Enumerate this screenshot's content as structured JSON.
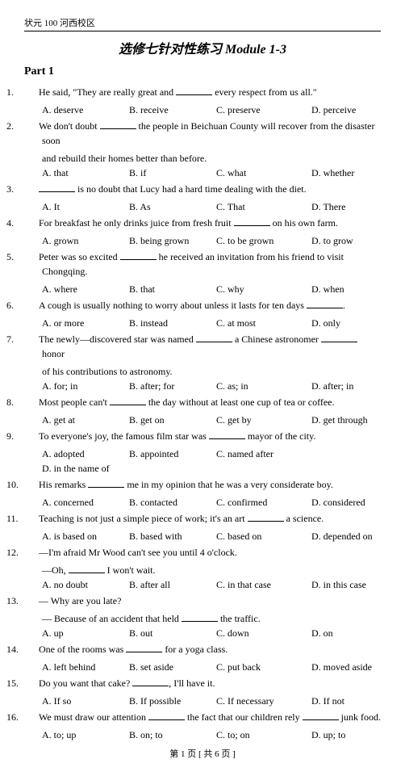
{
  "header": "状元 100 河西校区",
  "title": "选修七针对性练习 Module 1-3",
  "part_label": "Part 1",
  "footer": "第 1 页 [ 共 6 页 ]",
  "q": {
    "1": {
      "t": "He said, \"They are really great and ",
      "t2": " every respect from us all.\"",
      "a": "A. deserve",
      "b": "B. receive",
      "c": "C. preserve",
      "d": "D. perceive"
    },
    "2": {
      "t": "We don't doubt ",
      "t2": " the people in Beichuan County will recover from the disaster soon",
      "t3": "and rebuild their homes better than before.",
      "a": "A. that",
      "b": "B. if",
      "c": "C. what",
      "d": "D. whether"
    },
    "3": {
      "t": "",
      "t2": " is no doubt that Lucy had a hard time dealing with the diet.",
      "a": "A. It",
      "b": "B. As",
      "c": "C. That",
      "d": "D. There"
    },
    "4": {
      "t": "For breakfast he only drinks juice from fresh fruit ",
      "t2": " on his own farm.",
      "a": "A. grown",
      "b": "B. being grown",
      "c": "C. to be grown",
      "d": "D. to grow"
    },
    "5": {
      "t": "Peter was so excited ",
      "t2": " he received an invitation from his friend to visit Chongqing.",
      "a": "A. where",
      "b": "B. that",
      "c": "C. why",
      "d": "D. when"
    },
    "6": {
      "t": "A cough is usually nothing to worry about unless it lasts for ten days ",
      "t2": ".",
      "a": "A. or more",
      "b": "B. instead",
      "c": "C. at most",
      "d": "D. only"
    },
    "7": {
      "t": "The newly—discovered star was named ",
      "t2": " a Chinese astronomer ",
      "t3": " honor",
      "t4": "of his contributions to astronomy.",
      "a": "A. for; in",
      "b": "B. after; for",
      "c": "C. as; in",
      "d": "D. after; in"
    },
    "8": {
      "t": "Most people can't ",
      "t2": " the day without at least one cup of tea or coffee.",
      "a": "A. get at",
      "b": "B. get on",
      "c": "C. get by",
      "d": "D. get through"
    },
    "9": {
      "t": "To everyone's joy, the famous film star was ",
      "t2": " mayor of the city.",
      "a": "A. adopted",
      "b": "B. appointed",
      "c": "C. named after",
      "d": "D. in the name of"
    },
    "10": {
      "t": "His remarks ",
      "t2": " me in my opinion that he was a very considerate boy.",
      "a": "A. concerned",
      "b": "B. contacted",
      "c": "C. confirmed",
      "d": "D. considered"
    },
    "11": {
      "t": "Teaching is not just a simple piece of work; it's an art ",
      "t2": " a science.",
      "a": "A. is based on",
      "b": "B. based with",
      "c": "C. based on",
      "d": "D. depended on"
    },
    "12": {
      "t": "—I'm afraid Mr Wood can't see you until 4 o'clock.",
      "s1a": "—Oh, ",
      "s1b": " I won't wait.",
      "a": "A. no doubt",
      "b": "B. after all",
      "c": "C. in that case",
      "d": "D. in this case"
    },
    "13": {
      "t": "— Why are you late?",
      "s1a": "— Because of an accident that held ",
      "s1b": " the traffic.",
      "a": "A. up",
      "b": "B. out",
      "c": "C. down",
      "d": "D. on"
    },
    "14": {
      "t": "One of the rooms was ",
      "t2": " for a yoga class.",
      "a": "A. left behind",
      "b": "B. set aside",
      "c": "C. put back",
      "d": "D. moved aside"
    },
    "15": {
      "t": "Do you want that cake? ",
      "t2": ", I'll have it.",
      "a": "A. If so",
      "b": "B. If possible",
      "c": "C. If necessary",
      "d": "D. If not"
    },
    "16": {
      "t": "We must draw our attention ",
      "t2": " the fact that our children rely ",
      "t3": " junk food.",
      "a": "A. to; up",
      "b": "B. on; to",
      "c": "C. to; on",
      "d": "D. up; to"
    }
  }
}
